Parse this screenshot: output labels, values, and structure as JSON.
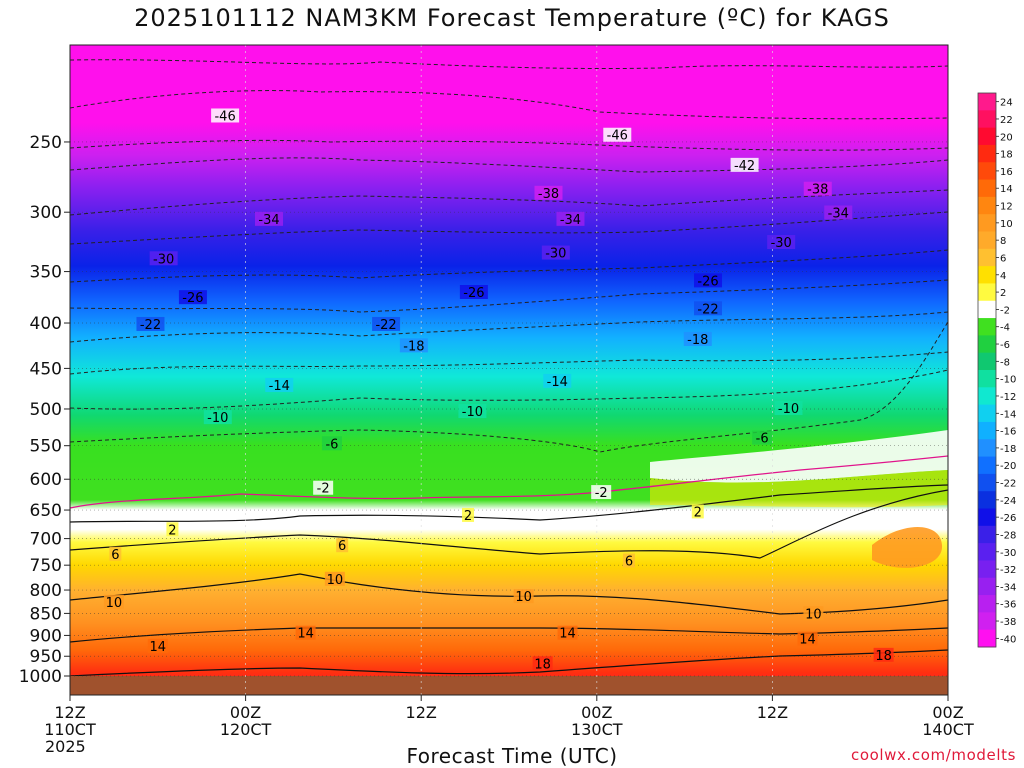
{
  "chart_data": {
    "type": "heatmap",
    "title": "2025101112 NAM3KM Forecast Temperature (ºC) for KAGS",
    "xlabel": "Forecast Time (UTC)",
    "ylabel": "",
    "credit": "coolwx.com/modelts",
    "x_ticks": [
      {
        "hours": 0,
        "lines": [
          "12Z",
          "110CT",
          "2025"
        ]
      },
      {
        "hours": 12,
        "lines": [
          "00Z",
          "120CT"
        ]
      },
      {
        "hours": 24,
        "lines": [
          "12Z"
        ]
      },
      {
        "hours": 36,
        "lines": [
          "00Z",
          "130CT"
        ]
      },
      {
        "hours": 48,
        "lines": [
          "12Z"
        ]
      },
      {
        "hours": 60,
        "lines": [
          "00Z",
          "140CT"
        ]
      }
    ],
    "xlim": [
      0,
      60
    ],
    "y_axis_scale": "log-pressure",
    "ylim_hpa": [
      1000,
      200
    ],
    "y_ticks": [
      250,
      300,
      350,
      400,
      450,
      500,
      550,
      600,
      650,
      700,
      750,
      800,
      850,
      900,
      950,
      1000
    ],
    "colorbar": {
      "labels": [
        "24",
        "22",
        "20",
        "18",
        "16",
        "14",
        "12",
        "10",
        "8",
        "6",
        "4",
        "2",
        "-2",
        "-4",
        "-6",
        "-8",
        "-10",
        "-12",
        "-14",
        "-16",
        "-18",
        "-20",
        "-22",
        "-24",
        "-26",
        "-28",
        "-30",
        "-32",
        "-34",
        "-36",
        "-38",
        "-40"
      ],
      "colors": [
        "#ff1a8c",
        "#ff1060",
        "#ff0a30",
        "#ff2a10",
        "#ff4a0a",
        "#ff6a08",
        "#ff8610",
        "#ff9a20",
        "#ffaa2a",
        "#ffc030",
        "#ffe000",
        "#fffa40",
        "#ffffff",
        "#40e020",
        "#20d040",
        "#10c870",
        "#10e0a0",
        "#10e8d0",
        "#10d0f0",
        "#10b0ff",
        "#2090ff",
        "#1070ff",
        "#1050f0",
        "#0a30e0",
        "#1010e8",
        "#3a20e8",
        "#5a20f0",
        "#7820f0",
        "#9820f0",
        "#b820f0",
        "#d020f0",
        "#ff10f0"
      ]
    },
    "isotherm_labels": [
      {
        "label": "-46",
        "hours": 10.6,
        "hpa": 234
      },
      {
        "label": "-46",
        "hours": 37.4,
        "hpa": 246
      },
      {
        "label": "-42",
        "hours": 46.1,
        "hpa": 266
      },
      {
        "label": "-38",
        "hours": 32.7,
        "hpa": 286
      },
      {
        "label": "-38",
        "hours": 51.1,
        "hpa": 283
      },
      {
        "label": "-34",
        "hours": 13.6,
        "hpa": 306
      },
      {
        "label": "-34",
        "hours": 34.2,
        "hpa": 306
      },
      {
        "label": "-34",
        "hours": 52.5,
        "hpa": 301
      },
      {
        "label": "-30",
        "hours": 6.4,
        "hpa": 339
      },
      {
        "label": "-30",
        "hours": 33.2,
        "hpa": 334
      },
      {
        "label": "-30",
        "hours": 48.6,
        "hpa": 325
      },
      {
        "label": "-26",
        "hours": 8.4,
        "hpa": 375
      },
      {
        "label": "-26",
        "hours": 27.6,
        "hpa": 370
      },
      {
        "label": "-26",
        "hours": 43.6,
        "hpa": 359
      },
      {
        "label": "-22",
        "hours": 5.5,
        "hpa": 402
      },
      {
        "label": "-22",
        "hours": 21.6,
        "hpa": 402
      },
      {
        "label": "-22",
        "hours": 43.6,
        "hpa": 386
      },
      {
        "label": "-18",
        "hours": 23.5,
        "hpa": 425
      },
      {
        "label": "-18",
        "hours": 42.9,
        "hpa": 418
      },
      {
        "label": "-14",
        "hours": 14.3,
        "hpa": 471
      },
      {
        "label": "-14",
        "hours": 33.3,
        "hpa": 466
      },
      {
        "label": "-10",
        "hours": 10.1,
        "hpa": 512
      },
      {
        "label": "-10",
        "hours": 27.5,
        "hpa": 504
      },
      {
        "label": "-10",
        "hours": 49.1,
        "hpa": 500
      },
      {
        "label": "-6",
        "hours": 17.9,
        "hpa": 548
      },
      {
        "label": "-6",
        "hours": 47.3,
        "hpa": 540
      },
      {
        "label": "-2",
        "hours": 17.3,
        "hpa": 615
      },
      {
        "label": "-2",
        "hours": 36.3,
        "hpa": 622
      },
      {
        "label": "2",
        "hours": 7.0,
        "hpa": 685
      },
      {
        "label": "2",
        "hours": 27.2,
        "hpa": 660
      },
      {
        "label": "2",
        "hours": 42.9,
        "hpa": 654
      },
      {
        "label": "6",
        "hours": 3.1,
        "hpa": 730
      },
      {
        "label": "6",
        "hours": 18.6,
        "hpa": 714
      },
      {
        "label": "6",
        "hours": 38.2,
        "hpa": 743
      },
      {
        "label": "10",
        "hours": 18.1,
        "hpa": 779
      },
      {
        "label": "10",
        "hours": 3.0,
        "hpa": 827
      },
      {
        "label": "10",
        "hours": 31.0,
        "hpa": 815
      },
      {
        "label": "10",
        "hours": 50.8,
        "hpa": 852
      },
      {
        "label": "14",
        "hours": 6.0,
        "hpa": 927
      },
      {
        "label": "14",
        "hours": 16.1,
        "hpa": 896
      },
      {
        "label": "14",
        "hours": 34.0,
        "hpa": 896
      },
      {
        "label": "14",
        "hours": 50.4,
        "hpa": 910
      },
      {
        "label": "18",
        "hours": 32.3,
        "hpa": 970
      },
      {
        "label": "18",
        "hours": 55.6,
        "hpa": 949
      }
    ]
  }
}
